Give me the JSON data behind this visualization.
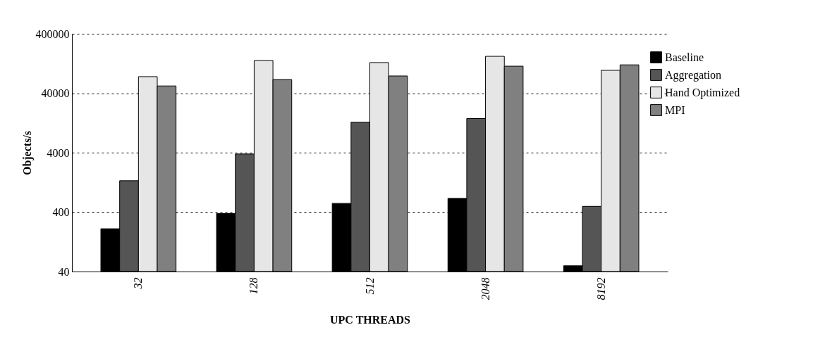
{
  "chart_data": {
    "type": "bar",
    "xlabel": "UPC THREADS",
    "ylabel": "Objects/s",
    "categories": [
      "32",
      "128",
      "512",
      "2048",
      "8192"
    ],
    "series": [
      {
        "name": "Baseline",
        "color": "#000000",
        "values": [
          210,
          380,
          560,
          680,
          50
        ]
      },
      {
        "name": "Aggregation",
        "color": "#555555",
        "values": [
          1350,
          3800,
          13000,
          15000,
          500
        ]
      },
      {
        "name": "Hand Optimized",
        "color": "#e6e6e6",
        "values": [
          76000,
          142000,
          131000,
          167000,
          97000
        ]
      },
      {
        "name": "MPI",
        "color": "#808080",
        "values": [
          53000,
          68000,
          78000,
          114000,
          120000
        ]
      }
    ],
    "log": "y",
    "ylim": [
      40,
      400000
    ],
    "yticks": [
      40,
      400,
      4000,
      40000,
      400000
    ],
    "grid": "y",
    "legend": "right"
  }
}
